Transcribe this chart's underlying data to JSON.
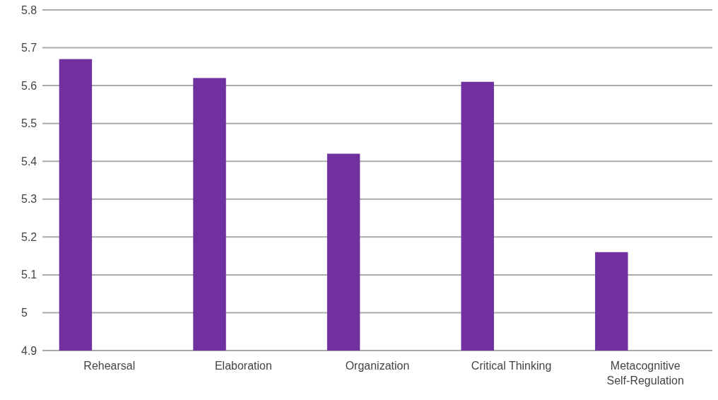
{
  "chart_data": {
    "type": "bar",
    "categories": [
      "Rehearsal",
      "Elaboration",
      "Organization",
      "Critical Thinking",
      "Metacognitive Self-Regulation"
    ],
    "values": [
      5.67,
      5.62,
      5.42,
      5.61,
      5.16
    ],
    "color": "#7030a0",
    "ylim": [
      4.9,
      5.8
    ],
    "yticks": [
      4.9,
      {
        "value": 5.0,
        "label": "5"
      },
      5.1,
      5.2,
      5.3,
      5.4,
      5.5,
      5.6,
      5.7,
      5.8
    ],
    "grid": "y"
  }
}
